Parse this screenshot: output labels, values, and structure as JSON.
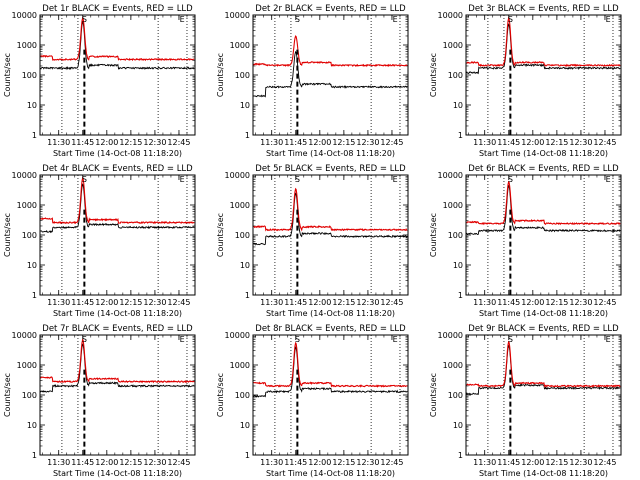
{
  "colors": {
    "events": "#000000",
    "lld": "#e00000",
    "axes": "#000000",
    "background": "#ffffff"
  },
  "chart_data": [
    {
      "type": "line",
      "title": "Det 1r BLACK = Events, RED = LLD",
      "xlabel": "Start Time (14-Oct-08 11:18:20)",
      "ylabel": "Counts/sec",
      "series": [
        {
          "name": "BLACK = Events",
          "level": 170,
          "step_start": 170,
          "peak": 6000
        },
        {
          "name": "RED = LLD",
          "level": 330,
          "step_start": 420,
          "peak": 8000
        }
      ]
    },
    {
      "type": "line",
      "title": "Det 2r BLACK = Events, RED = LLD",
      "xlabel": "Start Time (14-Oct-08 11:18:20)",
      "ylabel": "Counts/sec",
      "series": [
        {
          "name": "BLACK = Events",
          "level": 40,
          "step_start": 20,
          "peak": 600
        },
        {
          "name": "RED = LLD",
          "level": 210,
          "step_start": 230,
          "peak": 2000
        }
      ]
    },
    {
      "type": "line",
      "title": "Det 3r BLACK = Events, RED = LLD",
      "xlabel": "Start Time (14-Oct-08 11:18:20)",
      "ylabel": "Counts/sec",
      "series": [
        {
          "name": "BLACK = Events",
          "level": 170,
          "step_start": 120,
          "peak": 5000
        },
        {
          "name": "RED = LLD",
          "level": 210,
          "step_start": 260,
          "peak": 8000
        }
      ]
    },
    {
      "type": "line",
      "title": "Det 4r BLACK = Events, RED = LLD",
      "xlabel": "Start Time (14-Oct-08 11:18:20)",
      "ylabel": "Counts/sec",
      "series": [
        {
          "name": "BLACK = Events",
          "level": 180,
          "step_start": 130,
          "peak": 5000
        },
        {
          "name": "RED = LLD",
          "level": 260,
          "step_start": 350,
          "peak": 8000
        }
      ]
    },
    {
      "type": "line",
      "title": "Det 5r BLACK = Events, RED = LLD",
      "xlabel": "Start Time (14-Oct-08 11:18:20)",
      "ylabel": "Counts/sec",
      "series": [
        {
          "name": "BLACK = Events",
          "level": 90,
          "step_start": 50,
          "peak": 2500
        },
        {
          "name": "RED = LLD",
          "level": 150,
          "step_start": 190,
          "peak": 3500
        }
      ]
    },
    {
      "type": "line",
      "title": "Det 6r BLACK = Events, RED = LLD",
      "xlabel": "Start Time (14-Oct-08 11:18:20)",
      "ylabel": "Counts/sec",
      "series": [
        {
          "name": "BLACK = Events",
          "level": 140,
          "step_start": 110,
          "peak": 4500
        },
        {
          "name": "RED = LLD",
          "level": 240,
          "step_start": 270,
          "peak": 6000
        }
      ]
    },
    {
      "type": "line",
      "title": "Det 7r BLACK = Events, RED = LLD",
      "xlabel": "Start Time (14-Oct-08 11:18:20)",
      "ylabel": "Counts/sec",
      "series": [
        {
          "name": "BLACK = Events",
          "level": 200,
          "step_start": 130,
          "peak": 5000
        },
        {
          "name": "RED = LLD",
          "level": 280,
          "step_start": 380,
          "peak": 7000
        }
      ]
    },
    {
      "type": "line",
      "title": "Det 8r BLACK = Events, RED = LLD",
      "xlabel": "Start Time (14-Oct-08 11:18:20)",
      "ylabel": "Counts/sec",
      "series": [
        {
          "name": "BLACK = Events",
          "level": 130,
          "step_start": 90,
          "peak": 4000
        },
        {
          "name": "RED = LLD",
          "level": 200,
          "step_start": 250,
          "peak": 5500
        }
      ]
    },
    {
      "type": "line",
      "title": "Det 9r BLACK = Events, RED = LLD",
      "xlabel": "Start Time (14-Oct-08 11:18:20)",
      "ylabel": "Counts/sec",
      "series": [
        {
          "name": "BLACK = Events",
          "level": 170,
          "step_start": 110,
          "peak": 4500
        },
        {
          "name": "RED = LLD",
          "level": 200,
          "step_start": 220,
          "peak": 6000
        }
      ]
    }
  ],
  "axes": {
    "x_ticks": [
      "11:30",
      "11:45",
      "12:00",
      "12:15",
      "12:30",
      "12:45"
    ],
    "x_range": [
      "11:18:20",
      "12:55:00"
    ],
    "y_ticks": [
      "1",
      "10",
      "100",
      "1000",
      "10000"
    ],
    "y_range": [
      1,
      10000
    ],
    "y_scale": "log",
    "dotted_lines": [
      "11:32",
      "11:42",
      "12:32",
      "12:50"
    ],
    "dashed_line": "11:46",
    "peak_time": "11:45",
    "markers": [
      {
        "label": "S",
        "at": "11:46"
      },
      {
        "label": "E",
        "at": "12:47"
      }
    ]
  }
}
